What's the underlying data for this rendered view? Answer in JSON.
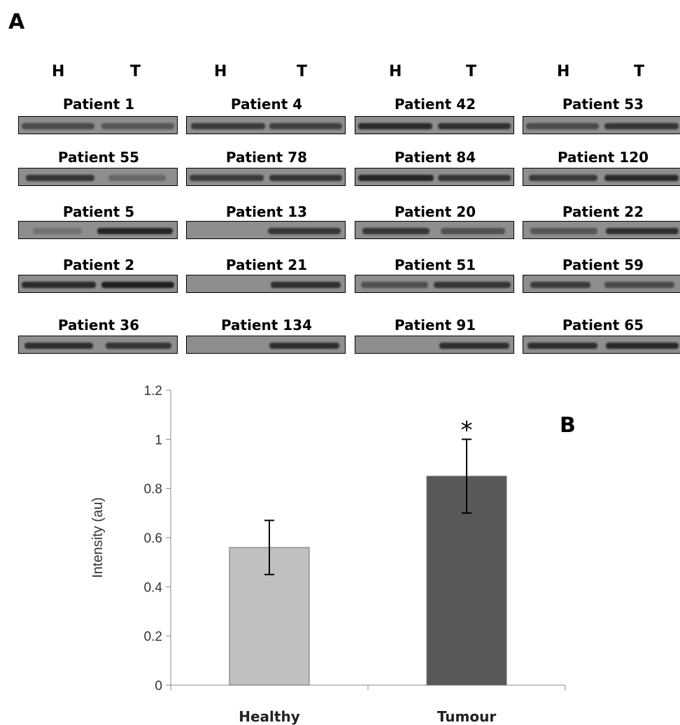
{
  "panel_a": {
    "letter": "A",
    "lane_labels": [
      "H",
      "T"
    ],
    "patients": [
      [
        "Patient 1",
        "Patient 4",
        "Patient 42",
        "Patient 53"
      ],
      [
        "Patient 55",
        "Patient 78",
        "Patient  84",
        "Patient 120"
      ],
      [
        "Patient 5",
        "Patient 13",
        "Patient 20",
        "Patient 22"
      ],
      [
        "Patient 2",
        "Patient 21",
        "Patient 51",
        "Patient 59"
      ],
      [
        "Patient  36",
        "Patient 134",
        "Patient 91",
        "Patient 65"
      ]
    ]
  },
  "chart_data": {
    "type": "bar",
    "panel_letter": "B",
    "categories": [
      "Healthy",
      "Tumour"
    ],
    "values": [
      0.56,
      0.85
    ],
    "error": [
      0.11,
      0.15
    ],
    "bar_colors": [
      "#c0c0c0",
      "#585858"
    ],
    "annotations": [
      {
        "category": "Tumour",
        "text": "*"
      }
    ],
    "title": "",
    "xlabel": "",
    "ylabel": "Intensity (au)",
    "ylim": [
      0,
      1.2
    ],
    "yticks": [
      "0",
      "0.2",
      "0.4",
      "0.6",
      "0.8",
      "1",
      "1.2"
    ],
    "grid": false,
    "legend": "none"
  }
}
